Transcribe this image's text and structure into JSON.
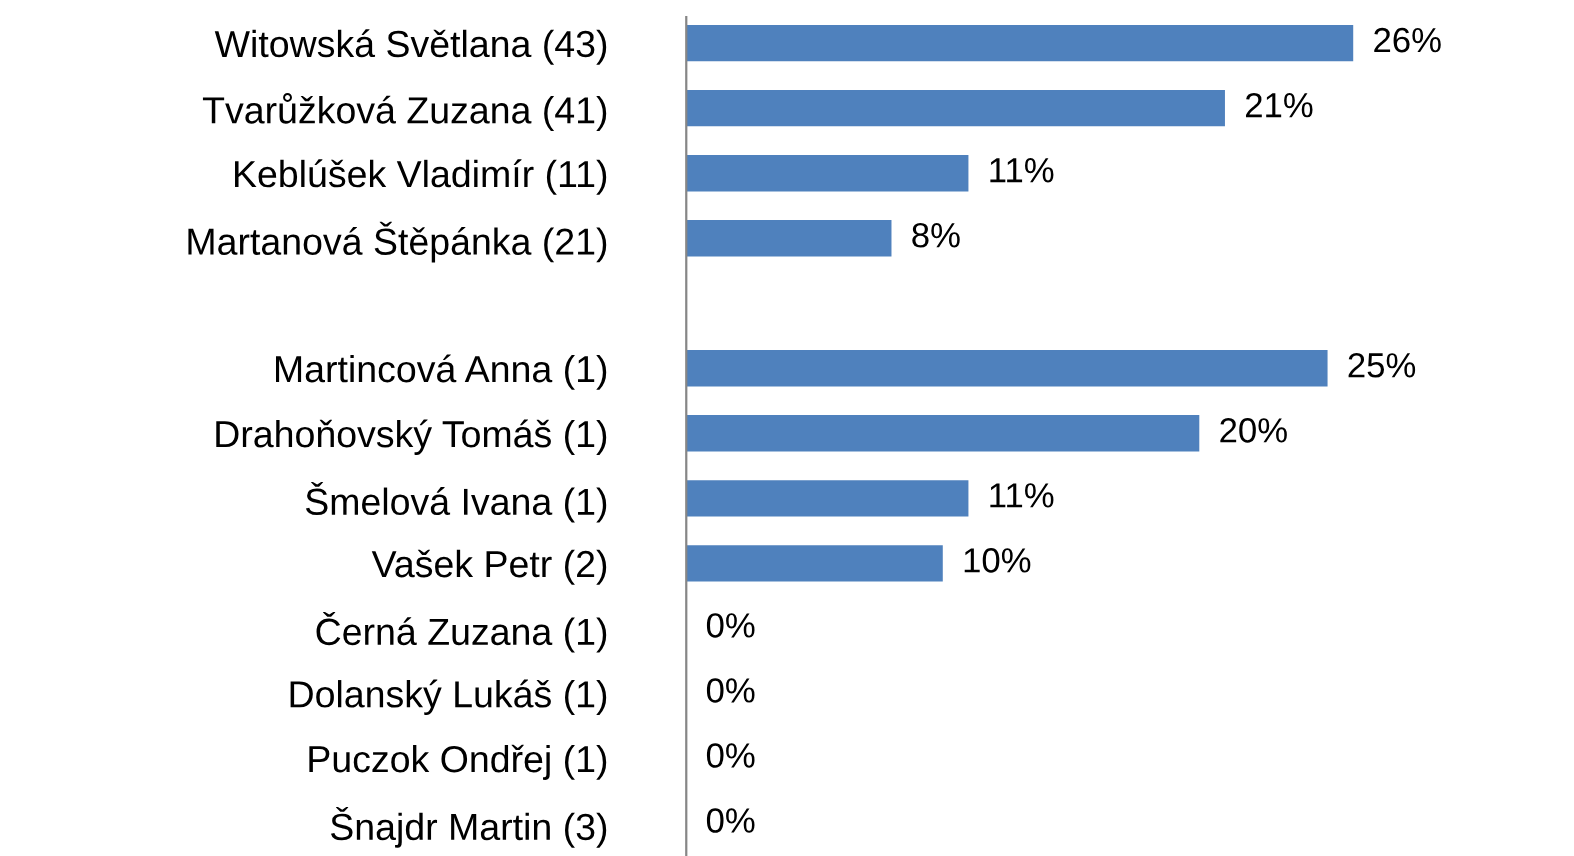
{
  "chart_data": {
    "type": "bar",
    "orientation": "horizontal",
    "value_labels": [
      "26%",
      "21%",
      "11%",
      "8%",
      null,
      "25%",
      "20%",
      "11%",
      "10%",
      "0%",
      "0%",
      "0%",
      "0%"
    ],
    "categories": [
      "Witowská Světlana (43)",
      "Tvarůžková Zuzana (41)",
      "Keblúšek Vladimír (11)",
      "Martanová Štěpánka (21)",
      null,
      "Martincová Anna (1)",
      "Drahoňovský Tomáš (1)",
      "Šmelová Ivana (1)",
      "Vašek Petr (2)",
      "Černá Zuzana (1)",
      "Dolanský Lukáš (1)",
      "Puczok Ondřej (1)",
      "Šnajdr Martin (3)"
    ],
    "values": [
      26,
      21,
      11,
      8,
      null,
      25,
      20,
      11,
      10,
      0,
      0,
      0,
      0
    ],
    "color": "#4f81bd",
    "grid": false,
    "legend": false
  }
}
